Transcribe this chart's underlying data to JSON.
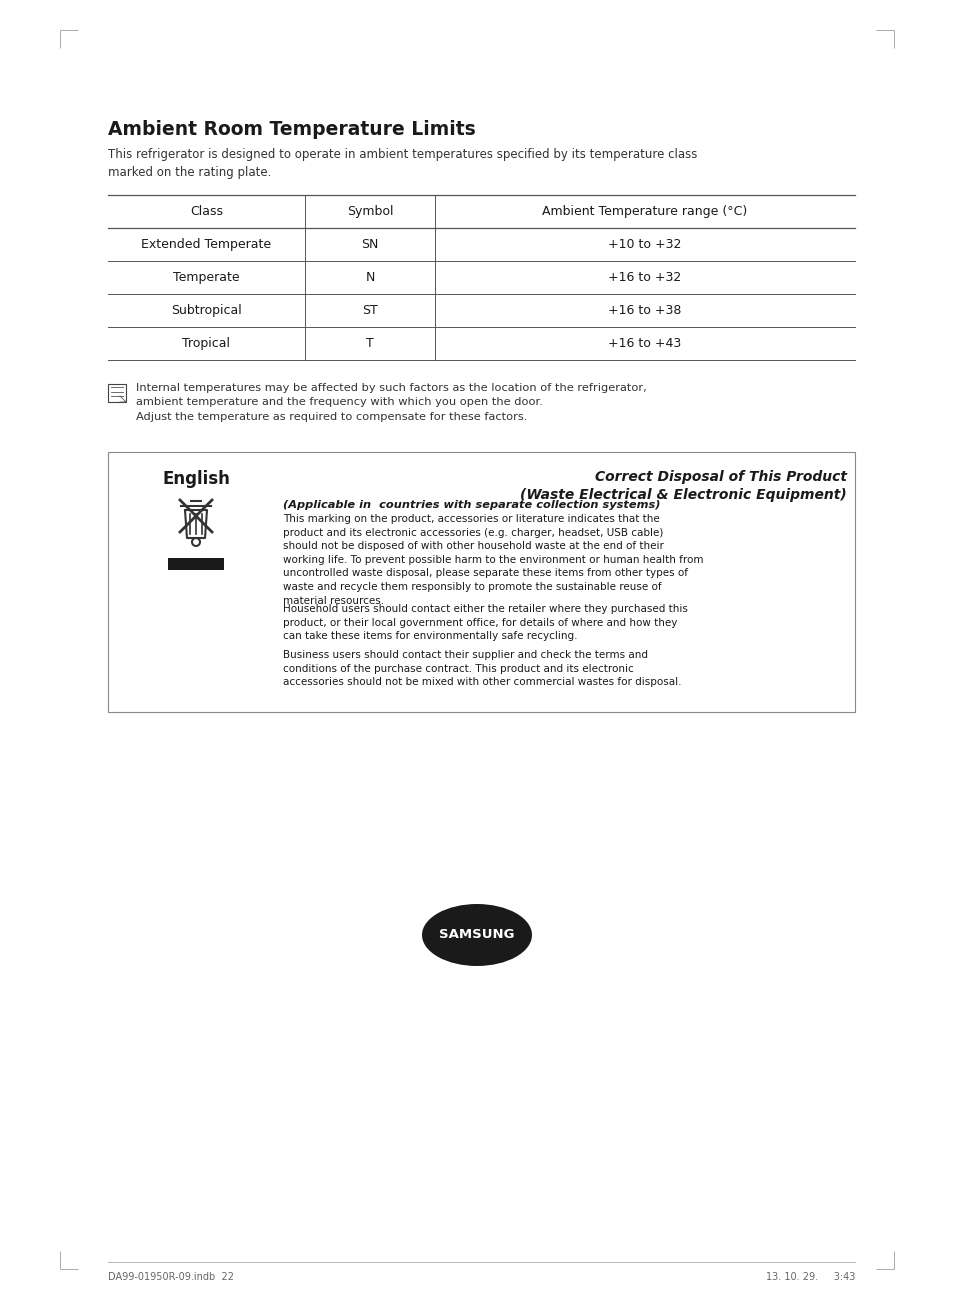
{
  "bg_color": "#ffffff",
  "page_title": "Ambient Room Temperature Limits",
  "page_subtitle": "This refrigerator is designed to operate in ambient temperatures specified by its temperature class\nmarked on the rating plate.",
  "table_headers": [
    "Class",
    "Symbol",
    "Ambient Temperature range (°C)"
  ],
  "table_rows": [
    [
      "Extended Temperate",
      "SN",
      "+10 to +32"
    ],
    [
      "Temperate",
      "N",
      "+16 to +32"
    ],
    [
      "Subtropical",
      "ST",
      "+16 to +38"
    ],
    [
      "Tropical",
      "T",
      "+16 to +43"
    ]
  ],
  "note_text": "Internal temperatures may be affected by such factors as the location of the refrigerator,\nambient temperature and the frequency with which you open the door.\nAdjust the temperature as required to compensate for these factors.",
  "disposal_title1": "Correct Disposal of This Product",
  "disposal_title2": "(Waste Electrical & Electronic Equipment)",
  "disposal_subtitle": "(Applicable in  countries with separate collection systems)",
  "disposal_para1": "This marking on the product, accessories or literature indicates that the product and its electronic accessories (e.g. charger, headset, USB cable) should not be disposed of with other household waste at the end of their working life. To prevent possible harm to the environment or human health from uncontrolled waste disposal, please separate these items from other types of waste and recycle them responsibly to promote the sustainable reuse of material resources.",
  "disposal_para2": "Household users should contact either the retailer where they purchased this product, or their local government office, for details of where and how they can take these items for environmentally safe recycling.",
  "disposal_para3": "Business users should contact their supplier and check the terms and conditions of the purchase contract. This product and its electronic accessories should not be mixed with other commercial wastes for disposal.",
  "footer_left": "DA99-01950R-09.indb  22",
  "footer_right": "13. 10. 29.     3:43",
  "text_color": "#1a1a1a",
  "line_color": "#555555",
  "box_border_color": "#888888",
  "samsung_logo_color": "#1a1a1a"
}
